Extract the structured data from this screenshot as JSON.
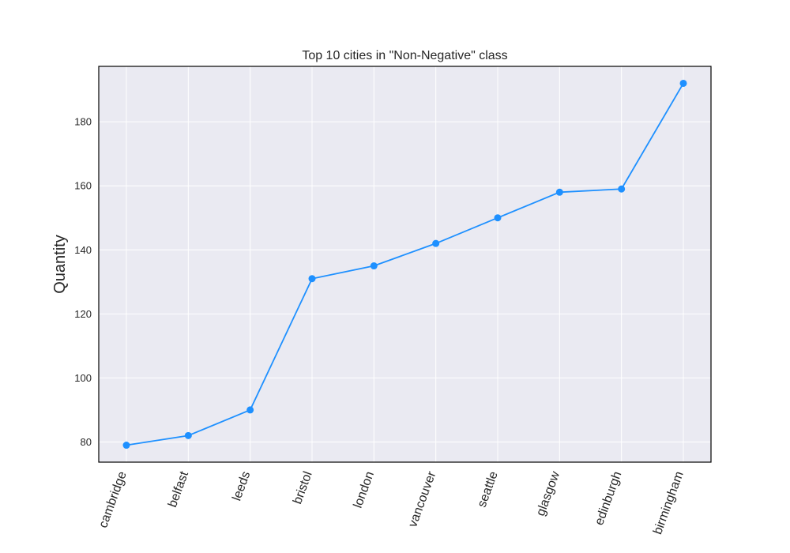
{
  "chart_data": {
    "type": "line",
    "title": "Top 10 cities in \"Non-Negative\" class",
    "xlabel": "",
    "ylabel": "Quantity",
    "categories": [
      "cambridge",
      "belfast",
      "leeds",
      "bristol",
      "london",
      "vancouver",
      "seattle",
      "glasgow",
      "edinburgh",
      "birmingham"
    ],
    "series": [
      {
        "values": [
          79,
          82,
          90,
          131,
          135,
          142,
          150,
          158,
          159,
          192
        ]
      }
    ],
    "ylim": [
      73.7,
      197.3
    ],
    "yticks": [
      "80",
      "100",
      "120",
      "140",
      "160",
      "180"
    ],
    "grid": true,
    "legend": "none",
    "colors": {
      "line": "#1e90ff",
      "plot_background": "#eaeaf2",
      "grid": "#ffffff",
      "frame": "#000000"
    }
  }
}
